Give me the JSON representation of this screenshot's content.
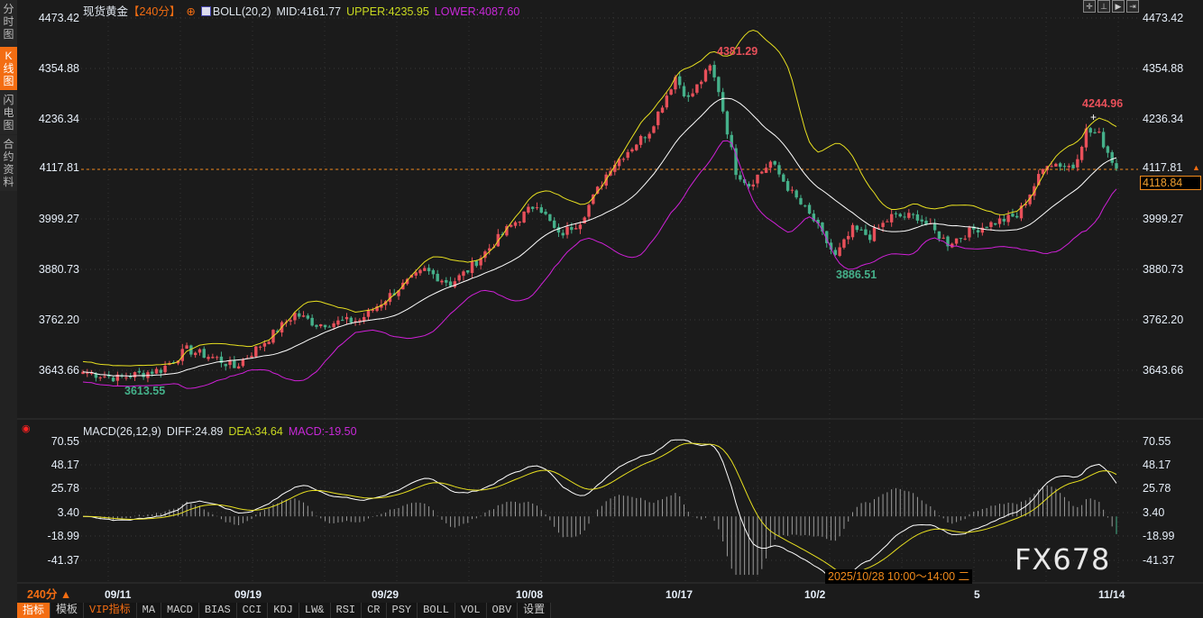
{
  "sidebar": {
    "items": [
      {
        "label": "分时图",
        "active": false
      },
      {
        "label": "K线图",
        "active": true
      },
      {
        "label": "闪电图",
        "active": false
      },
      {
        "label": "合约资料",
        "active": false
      }
    ]
  },
  "header": {
    "symbol": "现货黄金",
    "period": "【240分】",
    "indicator": "BOLL(20,2)",
    "mid": "MID:4161.77",
    "upper": "UPPER:4235.95",
    "lower": "LOWER:4087.60"
  },
  "macd_header": {
    "name": "MACD(26,12,9)",
    "diff": "DIFF:24.89",
    "dea": "DEA:34.64",
    "macd": "MACD:-19.50"
  },
  "toolbar_icons": [
    "crosshair-icon",
    "fit-range-icon",
    "play-icon",
    "jump-end-icon"
  ],
  "price_axis": [
    "4473.42",
    "4354.88",
    "4236.34",
    "4117.81",
    "3999.27",
    "3880.73",
    "3762.20",
    "3643.66"
  ],
  "macd_axis": [
    "70.55",
    "48.17",
    "25.78",
    "3.40",
    "-18.99",
    "-41.37"
  ],
  "annotations": {
    "high": "4381.29",
    "low_mid": "3886.51",
    "low_start": "3613.55",
    "recent_high": "4244.96"
  },
  "current_price": "4118.84",
  "dates": [
    "09/11",
    "09/19",
    "09/29",
    "10/08",
    "10/17",
    "10/2",
    "5",
    "11/14"
  ],
  "tooltip": "2025/10/28 10:00～14:00 二",
  "period_selector": "240分 ▲",
  "watermark": "FX678",
  "bottom_tabs": [
    "指标",
    "模板",
    "VIP指标",
    "MA",
    "MACD",
    "BIAS",
    "CCI",
    "KDJ",
    "LW&",
    "RSI",
    "CR",
    "PSY",
    "BOLL",
    "VOL",
    "OBV",
    "设置"
  ],
  "colors": {
    "up": "#e8505a",
    "down": "#45b08a",
    "mid": "#ffffff",
    "upper": "#e8e020",
    "lower": "#d020d8",
    "accent": "#f36d12"
  },
  "chart_data": {
    "type": "candlestick",
    "price_range": [
      3600,
      4473.42
    ],
    "macd_range": [
      -55,
      72
    ],
    "bars": 240,
    "close_keypoints": [
      [
        0,
        3640
      ],
      [
        8,
        3625
      ],
      [
        18,
        3645
      ],
      [
        24,
        3692
      ],
      [
        31,
        3671
      ],
      [
        35,
        3650
      ],
      [
        43,
        3720
      ],
      [
        49,
        3777
      ],
      [
        54,
        3752
      ],
      [
        64,
        3762
      ],
      [
        73,
        3837
      ],
      [
        79,
        3879
      ],
      [
        85,
        3848
      ],
      [
        89,
        3879
      ],
      [
        98,
        3975
      ],
      [
        105,
        4038
      ],
      [
        110,
        3960
      ],
      [
        115,
        3996
      ],
      [
        122,
        4123
      ],
      [
        131,
        4208
      ],
      [
        137,
        4335
      ],
      [
        140,
        4282
      ],
      [
        145,
        4357
      ],
      [
        147,
        4304
      ],
      [
        151,
        4113
      ],
      [
        154,
        4081
      ],
      [
        159,
        4134
      ],
      [
        164,
        4060
      ],
      [
        169,
        3996
      ],
      [
        174,
        3911
      ],
      [
        178,
        3975
      ],
      [
        182,
        3960
      ],
      [
        187,
        4006
      ],
      [
        193,
        4006
      ],
      [
        200,
        3943
      ],
      [
        206,
        3975
      ],
      [
        212,
        3996
      ],
      [
        216,
        4006
      ],
      [
        223,
        4134
      ],
      [
        229,
        4123
      ],
      [
        232,
        4208
      ],
      [
        235,
        4197
      ],
      [
        239,
        4118.84
      ]
    ],
    "bollinger": {
      "period": 20,
      "k": 2
    },
    "macd": {
      "params": [
        26,
        12,
        9
      ]
    }
  }
}
